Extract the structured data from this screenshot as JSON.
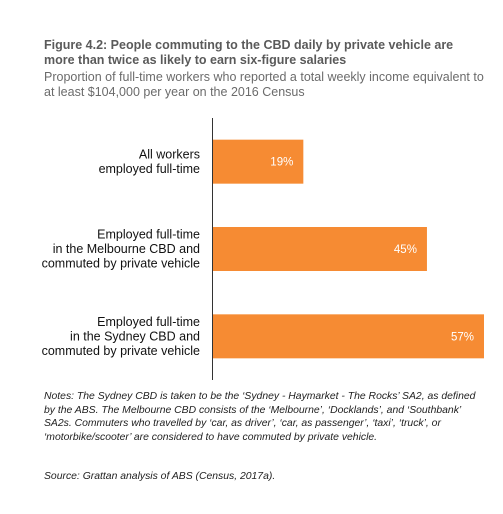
{
  "figure": {
    "title": "Figure 4.2: People commuting to the CBD daily by private vehicle are more than twice as likely to earn six-figure salaries",
    "subtitle": "Proportion of full-time workers who reported a total weekly income equivalent to at least $104,000 per year on the 2016 Census",
    "notes": "Notes: The Sydney CBD is taken to be the ‘Sydney - Haymarket - The Rocks’ SA2, as defined by the ABS. The Melbourne CBD consists of the ‘Melbourne’, ‘Docklands’, and ‘Southbank’ SA2s. Commuters who travelled by ‘car, as driver’, ‘car, as passenger’, ‘taxi’, ‘truck’, or ‘motorbike/scooter’ are considered to have commuted by private vehicle.",
    "source": "Source: Grattan analysis of ABS (Census, 2017a)."
  },
  "chart_data": {
    "type": "bar",
    "orientation": "horizontal",
    "title": "Figure 4.2: People commuting to the CBD daily by private vehicle are more than twice as likely to earn six-figure salaries",
    "subtitle": "Proportion of full-time workers who reported a total weekly income equivalent to at least $104,000 per year on the 2016 Census",
    "categories": [
      [
        "All workers",
        "employed full-time"
      ],
      [
        "Employed full-time",
        "in the Melbourne CBD and",
        "commuted by private vehicle"
      ],
      [
        "Employed full-time",
        "in the Sydney CBD and",
        "commuted by private vehicle"
      ]
    ],
    "values": [
      19,
      45,
      57
    ],
    "value_labels": [
      "19%",
      "45%",
      "57%"
    ],
    "unit": "%",
    "xlim": [
      0,
      57
    ],
    "grid": false,
    "legend": "none",
    "color": "#F68B33"
  }
}
